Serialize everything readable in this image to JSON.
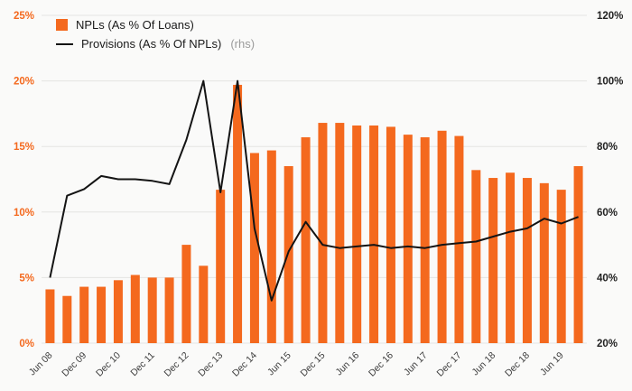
{
  "colors": {
    "background": "#fafaf9",
    "bar": "#f4691e",
    "line": "#141414",
    "grid": "#e4e4e2",
    "left_tick_text": "#f4691e",
    "right_tick_text": "#222222",
    "x_tick_text": "#3c3c3c",
    "rhs_note": "#9b9b9b"
  },
  "chart_data": {
    "type": "bar",
    "subtype": "bar+line dual axis",
    "title": "",
    "legend_position": "top-left",
    "grid": true,
    "legend": [
      {
        "label": "NPLs (As % Of Loans)",
        "note": ""
      },
      {
        "label": "Provisions (As % Of NPLs)",
        "note": "(rhs)"
      }
    ],
    "categories": [
      "Jun 08",
      "",
      "Dec 09",
      "",
      "Dec 10",
      "",
      "Dec 11",
      "",
      "Dec 12",
      "",
      "Dec 13",
      "",
      "Dec 14",
      "",
      "Jun 15",
      "",
      "Dec 15",
      "",
      "Jun 16",
      "",
      "Dec 16",
      "",
      "Jun 17",
      "",
      "Dec 17",
      "",
      "Jun 18",
      "",
      "Dec 18",
      "",
      "Jun 19",
      ""
    ],
    "series": [
      {
        "name": "NPLs (As % Of Loans)",
        "type": "bar",
        "axis": "left",
        "values": [
          4.1,
          3.6,
          4.3,
          4.3,
          4.8,
          5.2,
          5.0,
          5.0,
          7.5,
          5.9,
          11.7,
          19.7,
          14.5,
          14.7,
          13.5,
          15.7,
          16.8,
          16.8,
          16.6,
          16.6,
          16.5,
          15.9,
          15.7,
          16.2,
          15.8,
          13.2,
          12.6,
          13.0,
          12.6,
          12.2,
          11.7,
          13.5
        ]
      },
      {
        "name": "Provisions (As % Of NPLs)",
        "type": "line",
        "axis": "right",
        "values": [
          40,
          65,
          67,
          71,
          70,
          70,
          69.5,
          68.5,
          82,
          100,
          66,
          100,
          55,
          33,
          48,
          57,
          50,
          49,
          49.5,
          50,
          49,
          49.5,
          49,
          50,
          50.5,
          51,
          52.5,
          54,
          55,
          58,
          56.5,
          58.5
        ]
      }
    ],
    "left_axis": {
      "min": 0,
      "max": 25,
      "step": 5,
      "ticks": [
        "0%",
        "5%",
        "10%",
        "15%",
        "20%",
        "25%"
      ]
    },
    "right_axis": {
      "min": 20,
      "max": 120,
      "step": 20,
      "ticks": [
        "20%",
        "40%",
        "60%",
        "80%",
        "100%",
        "120%"
      ]
    }
  }
}
